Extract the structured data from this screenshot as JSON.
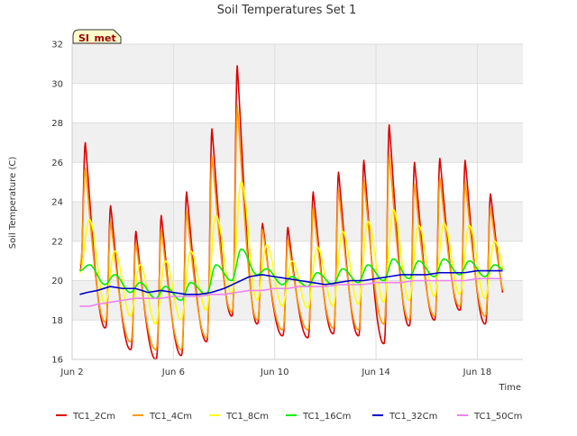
{
  "chart_data": {
    "type": "line",
    "title": "Soil Temperatures Set 1",
    "xlabel": "Time",
    "ylabel": "Soil Temperature (C)",
    "xlim": [
      2,
      19.8
    ],
    "ylim": [
      16,
      32
    ],
    "yticks": [
      16,
      18,
      20,
      22,
      24,
      26,
      28,
      30,
      32
    ],
    "xticks": [
      {
        "x": 2,
        "label": "Jun 2"
      },
      {
        "x": 6,
        "label": "Jun 6"
      },
      {
        "x": 10,
        "label": "Jun 10"
      },
      {
        "x": 14,
        "label": "Jun 14"
      },
      {
        "x": 18,
        "label": "Jun 18"
      }
    ],
    "grid": true,
    "legend_position": "bottom",
    "annotation": "SI_met",
    "series": [
      {
        "name": "TC1_2Cm",
        "color": "#dd0000",
        "kind": "peaky",
        "x_range": [
          2.3,
          19.0
        ],
        "peaks": [
          27.0,
          23.8,
          22.5,
          23.3,
          24.5,
          27.7,
          30.9,
          22.9,
          22.7,
          24.5,
          25.5,
          26.1,
          27.9,
          26.0,
          26.2,
          26.1,
          24.4
        ],
        "troughs": [
          20.5,
          17.6,
          16.5,
          16.0,
          16.2,
          16.9,
          18.2,
          17.8,
          17.2,
          17.1,
          17.3,
          17.2,
          16.8,
          17.7,
          18.0,
          18.5,
          17.8,
          18.2
        ]
      },
      {
        "name": "TC1_4Cm",
        "color": "#ff9900",
        "kind": "peaky",
        "x_range": [
          2.3,
          19.0
        ],
        "peaks": [
          25.7,
          23.0,
          21.9,
          22.6,
          23.5,
          26.3,
          28.9,
          22.6,
          22.1,
          23.7,
          24.6,
          25.1,
          26.4,
          24.9,
          25.2,
          25.0,
          23.7
        ],
        "troughs": [
          20.8,
          17.9,
          16.9,
          16.5,
          16.5,
          17.1,
          18.4,
          18.0,
          17.5,
          17.5,
          17.6,
          17.5,
          17.8,
          18.0,
          18.2,
          18.7,
          18.2,
          18.5
        ]
      },
      {
        "name": "TC1_8Cm",
        "color": "#ffff00",
        "kind": "smooth",
        "x_range": [
          2.3,
          19.0
        ],
        "peaks": [
          23.1,
          21.5,
          20.8,
          21.0,
          21.5,
          23.3,
          25.0,
          21.8,
          21.0,
          21.7,
          22.5,
          23.0,
          23.6,
          22.8,
          22.9,
          22.8,
          22.0
        ],
        "troughs": [
          20.4,
          18.8,
          18.2,
          17.8,
          18.0,
          18.5,
          19.3,
          19.0,
          18.7,
          18.6,
          18.7,
          18.8,
          18.9,
          19.0,
          19.2,
          19.3,
          19.1,
          19.3
        ]
      },
      {
        "name": "TC1_16Cm",
        "color": "#00ee00",
        "kind": "smooth",
        "x_range": [
          2.3,
          19.0
        ],
        "peaks": [
          20.8,
          20.3,
          19.9,
          19.7,
          19.9,
          20.8,
          21.6,
          20.6,
          20.2,
          20.4,
          20.6,
          20.8,
          21.1,
          21.0,
          21.1,
          21.0,
          20.8
        ],
        "troughs": [
          20.5,
          19.8,
          19.4,
          19.1,
          19.0,
          19.3,
          20.0,
          20.3,
          19.8,
          19.7,
          19.8,
          19.9,
          20.0,
          20.1,
          20.2,
          20.3,
          20.2,
          20.3
        ]
      },
      {
        "name": "TC1_32Cm",
        "color": "#0000cc",
        "kind": "points",
        "x": [
          2.3,
          2.6,
          3.0,
          3.5,
          4.0,
          4.5,
          5.0,
          5.5,
          6.0,
          6.5,
          7.0,
          7.5,
          8.0,
          8.5,
          9.0,
          9.5,
          10.0,
          10.5,
          11.0,
          11.5,
          12.0,
          12.5,
          13.0,
          13.5,
          14.0,
          14.5,
          15.0,
          15.5,
          16.0,
          16.5,
          17.0,
          17.5,
          18.0,
          18.5,
          19.0
        ],
        "y": [
          19.3,
          19.4,
          19.5,
          19.7,
          19.6,
          19.6,
          19.4,
          19.5,
          19.4,
          19.3,
          19.3,
          19.4,
          19.6,
          19.9,
          20.2,
          20.3,
          20.2,
          20.1,
          20.0,
          19.9,
          19.8,
          19.9,
          20.0,
          20.0,
          20.1,
          20.2,
          20.3,
          20.3,
          20.3,
          20.4,
          20.4,
          20.4,
          20.5,
          20.5,
          20.5
        ]
      },
      {
        "name": "TC1_50Cm",
        "color": "#ee82ee",
        "kind": "points",
        "x": [
          2.3,
          2.7,
          3.0,
          3.5,
          4.0,
          4.5,
          5.0,
          5.5,
          6.0,
          6.5,
          7.0,
          7.5,
          8.0,
          8.5,
          9.0,
          9.5,
          10.0,
          10.5,
          11.0,
          11.5,
          12.0,
          12.5,
          13.0,
          13.5,
          14.0,
          14.5,
          15.0,
          15.5,
          16.0,
          16.5,
          17.0,
          17.5,
          18.0,
          18.5,
          19.0
        ],
        "y": [
          18.7,
          18.7,
          18.8,
          18.9,
          19.0,
          19.1,
          19.1,
          19.1,
          19.2,
          19.2,
          19.2,
          19.3,
          19.3,
          19.4,
          19.5,
          19.5,
          19.6,
          19.6,
          19.7,
          19.7,
          19.7,
          19.8,
          19.8,
          19.8,
          19.9,
          19.9,
          19.9,
          20.0,
          20.0,
          20.0,
          20.0,
          20.0,
          20.1,
          20.1,
          20.1
        ]
      }
    ]
  }
}
